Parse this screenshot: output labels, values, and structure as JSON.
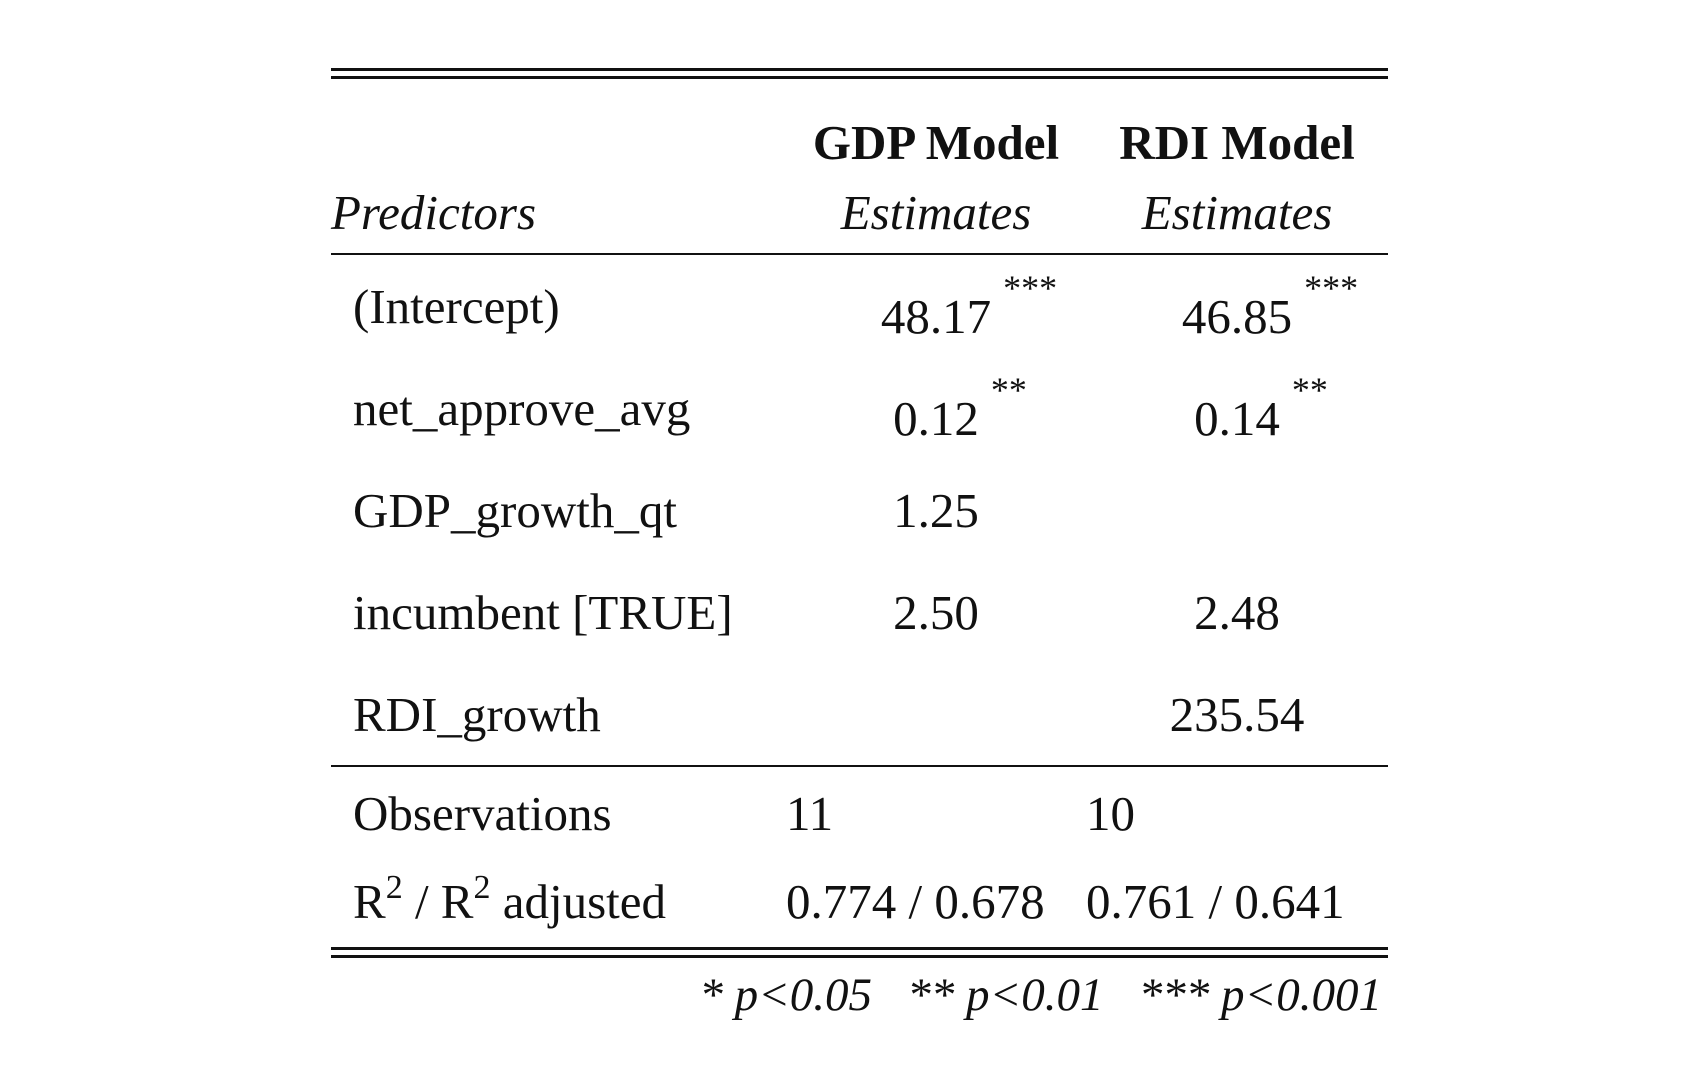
{
  "table": {
    "models": [
      "GDP Model",
      "RDI Model"
    ],
    "predictors_header": "Predictors",
    "estimates_label": "Estimates",
    "rows": [
      {
        "name": "(Intercept)",
        "gdp": "48.17",
        "gdp_stars": "***",
        "rdi": "46.85",
        "rdi_stars": "***"
      },
      {
        "name": "net_approve_avg",
        "gdp": "0.12",
        "gdp_stars": "**",
        "rdi": "0.14",
        "rdi_stars": "**"
      },
      {
        "name": "GDP_growth_qt",
        "gdp": "1.25",
        "gdp_stars": "",
        "rdi": "",
        "rdi_stars": ""
      },
      {
        "name": "incumbent [TRUE]",
        "gdp": "2.50",
        "gdp_stars": "",
        "rdi": "2.48",
        "rdi_stars": ""
      },
      {
        "name": "RDI_growth",
        "gdp": "",
        "gdp_stars": "",
        "rdi": "235.54",
        "rdi_stars": ""
      }
    ],
    "observations": {
      "label": "Observations",
      "gdp": "11",
      "rdi": "10"
    },
    "r2": {
      "label_r": "R",
      "label_sup": "2",
      "label_sep": " / R",
      "label_sup2": "2",
      "label_tail": " adjusted",
      "gdp": "0.774 / 0.678",
      "rdi": "0.761 / 0.641"
    },
    "footnote": "* p<0.05   ** p<0.01   *** p<0.001"
  }
}
